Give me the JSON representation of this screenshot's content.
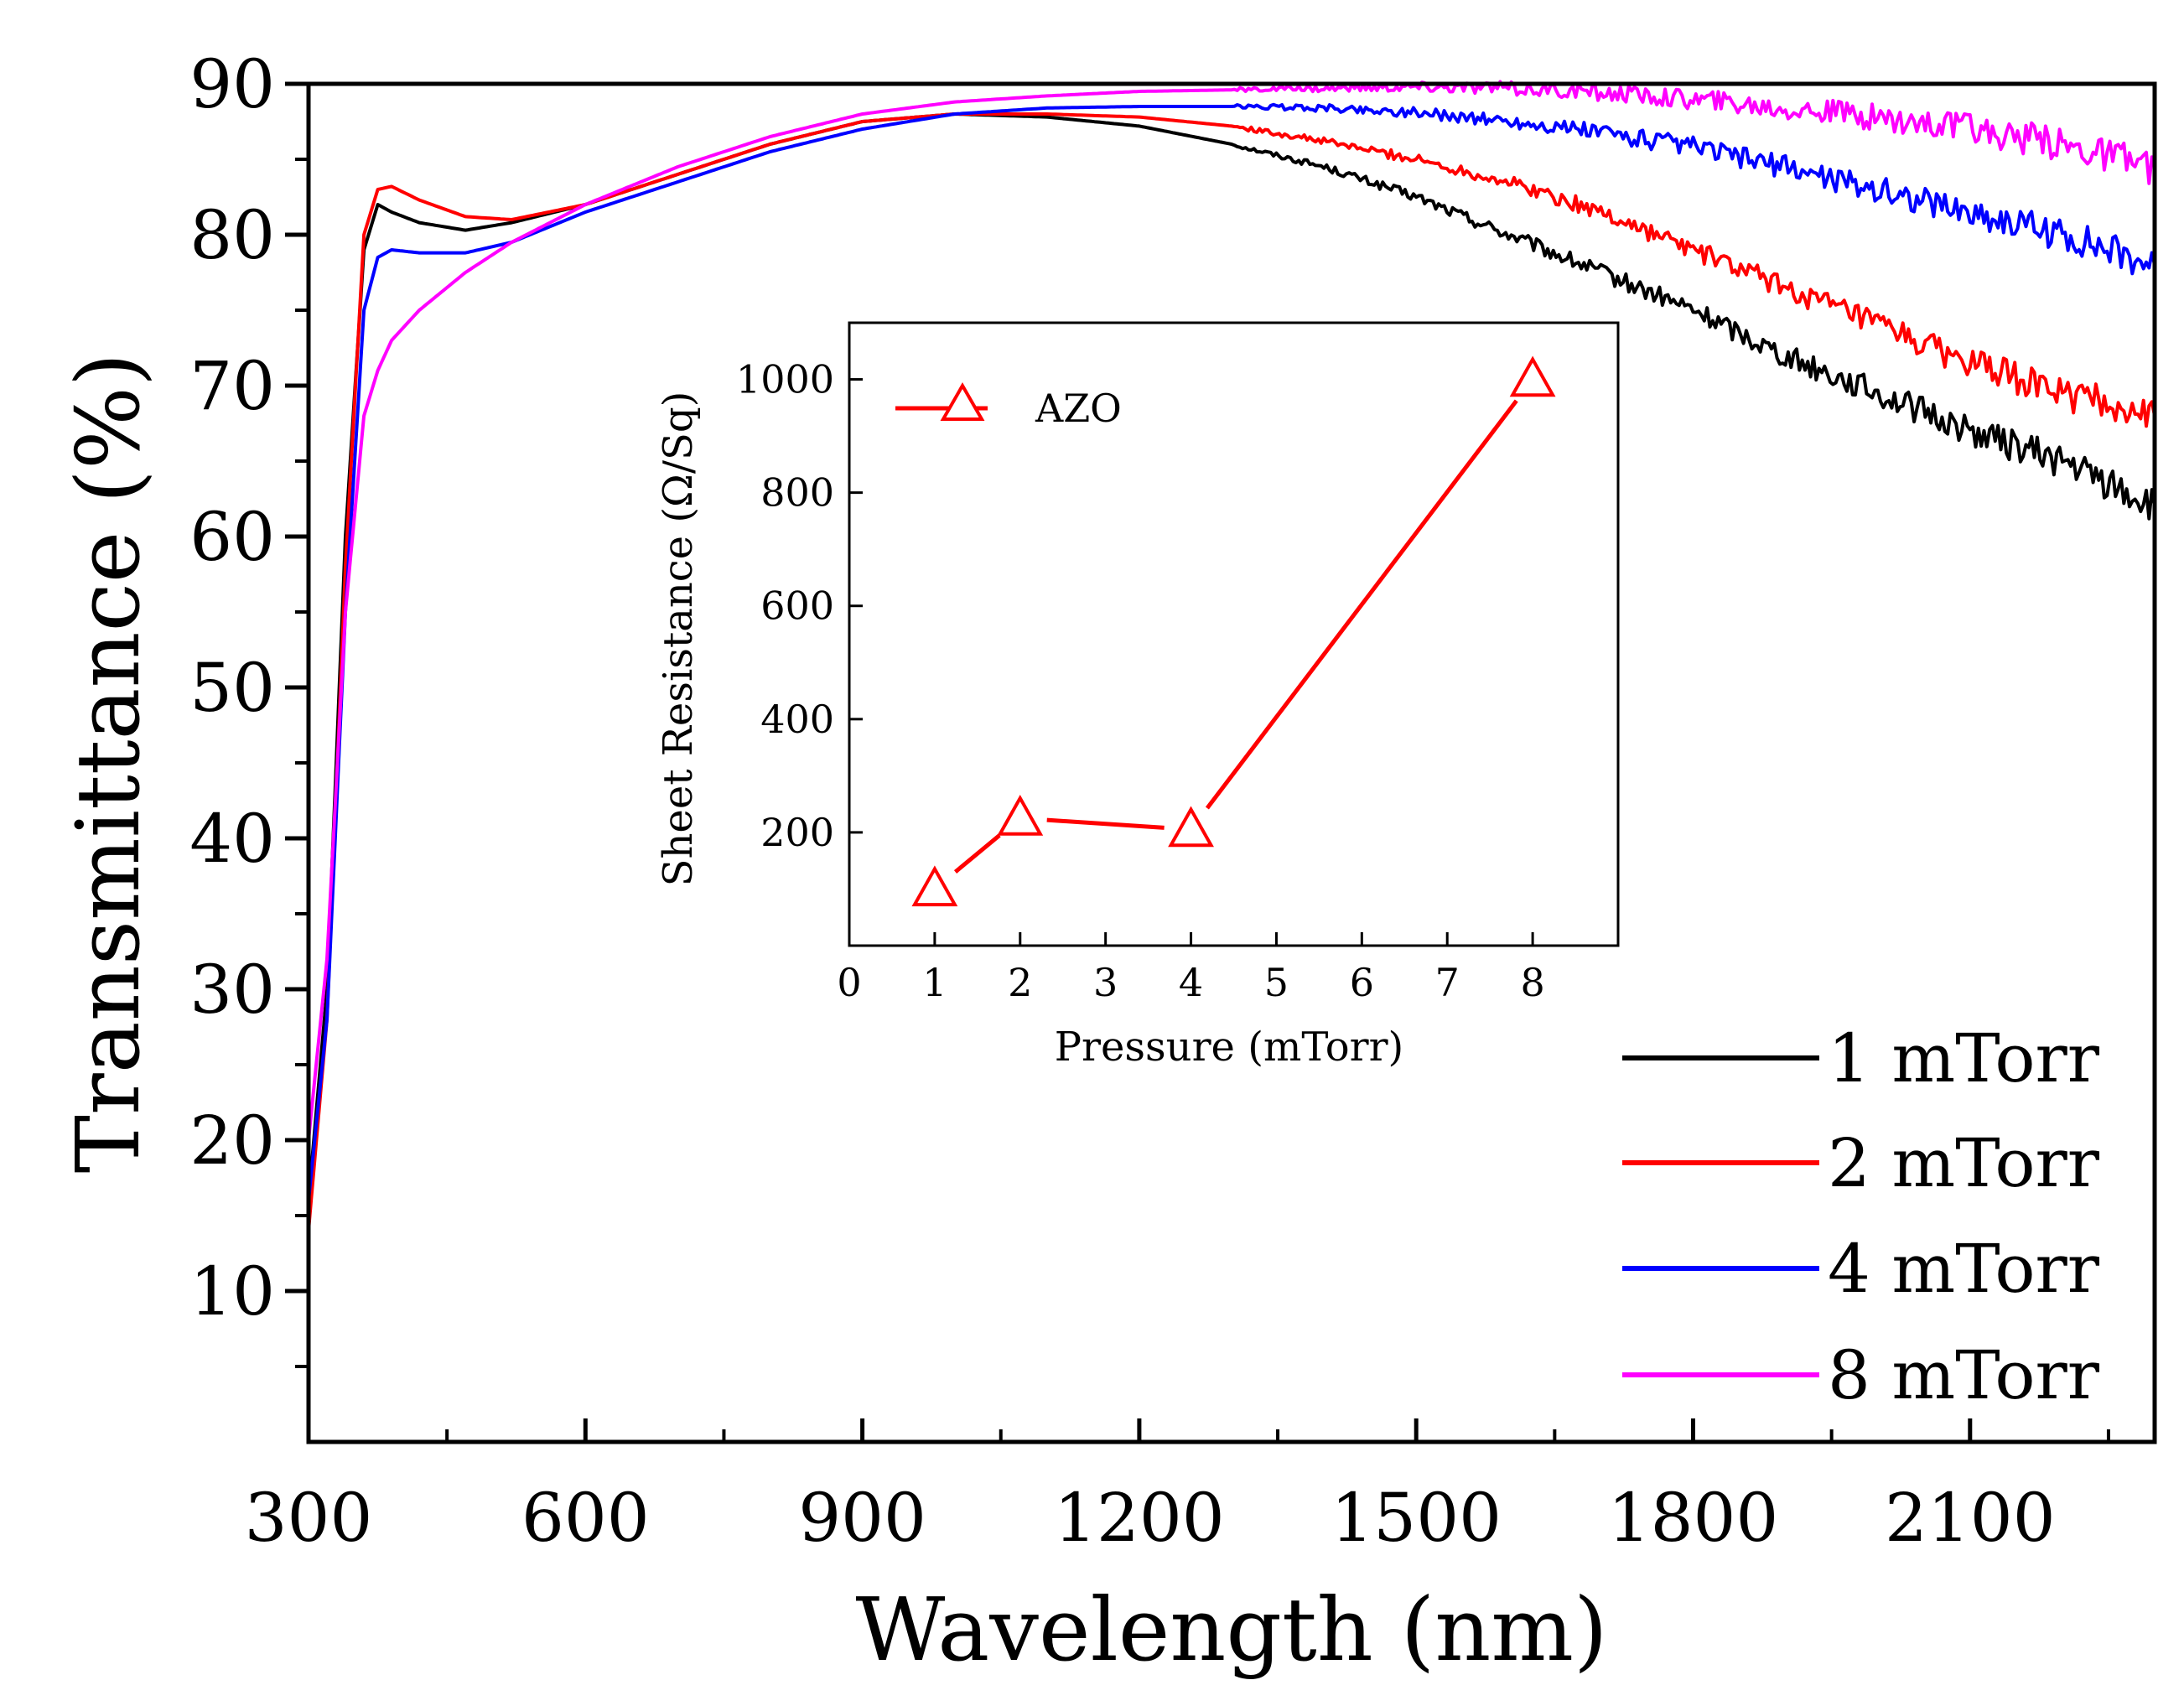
{
  "colors": {
    "s1": "#000000",
    "s2": "#ff0000",
    "s4": "#0000ff",
    "s8": "#ff00ff",
    "inset": "#ff0000"
  },
  "chart_data": [
    {
      "type": "line",
      "xlabel": "Wavelength (nm)",
      "ylabel": "Transmittance (%)",
      "xlim": [
        300,
        2300
      ],
      "ylim": [
        0,
        90
      ],
      "xticks": [
        300,
        600,
        900,
        1200,
        1500,
        1800,
        2100
      ],
      "yticks": [
        10,
        20,
        30,
        40,
        50,
        60,
        70,
        80,
        90
      ],
      "legend_position": "bottom-right",
      "series": [
        {
          "name": "1 mTorr",
          "color": "#000000",
          "x": [
            300,
            320,
            340,
            360,
            375,
            390,
            420,
            470,
            520,
            600,
            700,
            800,
            900,
            1000,
            1100,
            1200,
            1300,
            1400,
            1500,
            1600,
            1700,
            1800,
            1900,
            2000,
            2100,
            2200,
            2300
          ],
          "y": [
            16,
            30,
            60,
            79,
            82,
            81.5,
            80.8,
            80.3,
            80.8,
            82,
            84,
            86,
            87.5,
            88,
            87.8,
            87.2,
            86,
            84.5,
            82.5,
            80,
            77.5,
            75,
            72,
            69.5,
            67,
            65,
            62
          ]
        },
        {
          "name": "2 mTorr",
          "color": "#ff0000",
          "x": [
            300,
            320,
            340,
            360,
            375,
            390,
            420,
            470,
            520,
            600,
            700,
            800,
            900,
            1000,
            1100,
            1200,
            1300,
            1400,
            1500,
            1600,
            1700,
            1800,
            1900,
            2000,
            2100,
            2200,
            2300
          ],
          "y": [
            14,
            28,
            58,
            80,
            83,
            83.2,
            82.3,
            81.2,
            81,
            82,
            84,
            86,
            87.5,
            88,
            88,
            87.8,
            87.2,
            86.2,
            85,
            83.5,
            81.5,
            79,
            76.5,
            74,
            71.5,
            69.5,
            68
          ]
        },
        {
          "name": "4 mTorr",
          "color": "#0000ff",
          "x": [
            300,
            320,
            340,
            360,
            375,
            390,
            420,
            470,
            520,
            600,
            700,
            800,
            900,
            1000,
            1100,
            1200,
            1300,
            1400,
            1500,
            1600,
            1700,
            1800,
            1900,
            2000,
            2100,
            2200,
            2300
          ],
          "y": [
            16,
            28,
            55,
            75,
            78.5,
            79,
            78.8,
            78.8,
            79.5,
            81.5,
            83.5,
            85.5,
            87,
            88,
            88.4,
            88.5,
            88.5,
            88.4,
            88.1,
            87.5,
            86.8,
            85.8,
            84.5,
            83,
            81.5,
            80,
            78
          ]
        },
        {
          "name": "8 mTorr",
          "color": "#ff00ff",
          "x": [
            300,
            320,
            340,
            360,
            375,
            390,
            420,
            470,
            520,
            600,
            700,
            800,
            900,
            1000,
            1100,
            1200,
            1300,
            1400,
            1500,
            1600,
            1700,
            1800,
            1900,
            2000,
            2100,
            2200,
            2300
          ],
          "y": [
            20,
            32,
            55,
            68,
            71,
            73,
            75,
            77.5,
            79.5,
            82,
            84.5,
            86.5,
            88,
            88.8,
            89.2,
            89.5,
            89.6,
            89.7,
            89.8,
            89.7,
            89.4,
            89,
            88.4,
            87.8,
            87,
            86,
            84.5
          ]
        }
      ]
    },
    {
      "type": "line",
      "xlabel": "Pressure (mTorr)",
      "ylabel": "Sheet Resistance (Ω/Sq)",
      "xlim": [
        0,
        9
      ],
      "ylim": [
        0,
        1100
      ],
      "xticks": [
        0,
        1,
        2,
        3,
        4,
        5,
        6,
        7,
        8
      ],
      "yticks": [
        200,
        400,
        600,
        800,
        1000
      ],
      "legend_position": "top-left",
      "series": [
        {
          "name": "AZO",
          "marker": "open-triangle",
          "color": "#ff0000",
          "x": [
            1,
            2,
            4,
            8
          ],
          "y": [
            100,
            225,
            205,
            1000
          ]
        }
      ]
    }
  ]
}
